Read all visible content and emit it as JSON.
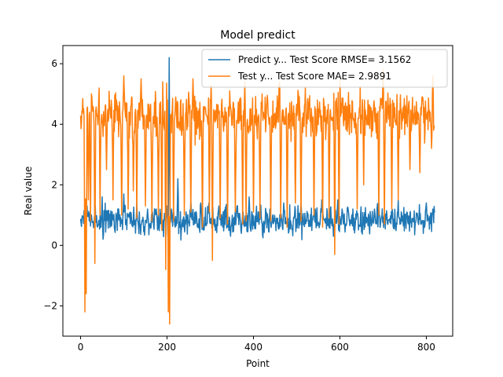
{
  "chart_data": {
    "type": "line",
    "title": "Model predict",
    "xlabel": "Point",
    "ylabel": "Real value",
    "xlim": [
      -41,
      861
    ],
    "ylim": [
      -3.0,
      6.6
    ],
    "xticks": [
      0,
      200,
      400,
      600,
      800
    ],
    "yticks": [
      -2,
      0,
      2,
      4,
      6
    ],
    "grid": false,
    "legend_position": "upper right",
    "colors": {
      "blue": "#1f77b4",
      "orange": "#ff7f0e"
    },
    "x_start": 0,
    "x_end": 819,
    "series": [
      {
        "name": "Predict y... Test Score RMSE= 3.1562",
        "color": "#1f77b4",
        "summary": {
          "baseline": 0.82,
          "spread": 0.22,
          "spikes": [
            [
              10,
              1.5
            ],
            [
              15,
              1.3
            ],
            [
              50,
              1.6
            ],
            [
              100,
              1.7
            ],
            [
              130,
              1.4
            ],
            [
              155,
              1.2
            ],
            [
              175,
              1.2
            ],
            [
              200,
              1.3
            ],
            [
              205,
              6.2
            ],
            [
              210,
              1.2
            ],
            [
              225,
              2.2
            ],
            [
              255,
              1.5
            ],
            [
              278,
              1.4
            ],
            [
              297,
              1.4
            ],
            [
              320,
              1.3
            ],
            [
              362,
              1.3
            ],
            [
              390,
              1.6
            ],
            [
              438,
              1.2
            ],
            [
              470,
              1.4
            ],
            [
              510,
              1.4
            ],
            [
              543,
              1.2
            ],
            [
              558,
              1.5
            ],
            [
              595,
              1.5
            ],
            [
              605,
              1.2
            ],
            [
              680,
              1.2
            ],
            [
              690,
              1.4
            ],
            [
              735,
              1.5
            ],
            [
              755,
              1.1
            ],
            [
              800,
              1.4
            ],
            [
              815,
              1.2
            ]
          ],
          "dips": [
            [
              52,
              0.2
            ],
            [
              202,
              0.3
            ],
            [
              347,
              0.3
            ],
            [
              585,
              0.3
            ]
          ]
        }
      },
      {
        "name": "Test y... Test Score MAE= 2.9891",
        "color": "#ff7f0e",
        "summary": {
          "baseline": 4.3,
          "spread": 0.35,
          "dips": [
            [
              10,
              -2.2
            ],
            [
              13,
              -1.6
            ],
            [
              18,
              1.5
            ],
            [
              23,
              0.8
            ],
            [
              33,
              -0.6
            ],
            [
              45,
              1.0
            ],
            [
              60,
              2.5
            ],
            [
              75,
              1.5
            ],
            [
              95,
              1.0
            ],
            [
              110,
              1.2
            ],
            [
              122,
              1.8
            ],
            [
              130,
              0.9
            ],
            [
              150,
              1.3
            ],
            [
              165,
              0.8
            ],
            [
              180,
              1.0
            ],
            [
              188,
              0.5
            ],
            [
              197,
              -0.8
            ],
            [
              203,
              -2.2
            ],
            [
              206,
              -2.6
            ],
            [
              215,
              0.8
            ],
            [
              240,
              1.0
            ],
            [
              255,
              1.1
            ],
            [
              282,
              0.6
            ],
            [
              298,
              1.1
            ],
            [
              305,
              -0.5
            ],
            [
              323,
              0.9
            ],
            [
              340,
              0.7
            ],
            [
              358,
              1.1
            ],
            [
              375,
              0.7
            ],
            [
              383,
              0.8
            ],
            [
              400,
              1.1
            ],
            [
              415,
              0.9
            ],
            [
              440,
              0.8
            ],
            [
              463,
              0.9
            ],
            [
              478,
              0.6
            ],
            [
              497,
              1.4
            ],
            [
              510,
              0.8
            ],
            [
              540,
              1.0
            ],
            [
              560,
              0.6
            ],
            [
              575,
              0.9
            ],
            [
              588,
              -0.3
            ],
            [
              598,
              0.7
            ],
            [
              640,
              1.2
            ],
            [
              655,
              2.0
            ],
            [
              690,
              1.0
            ],
            [
              703,
              0.7
            ],
            [
              720,
              1.2
            ],
            [
              735,
              1.5
            ],
            [
              762,
              2.5
            ],
            [
              785,
              2.4
            ],
            [
              812,
              3.2
            ]
          ],
          "peaks": [
            [
              10,
              5.4
            ],
            [
              25,
              5.0
            ],
            [
              43,
              5.2
            ],
            [
              100,
              5.6
            ],
            [
              118,
              4.9
            ],
            [
              140,
              5.5
            ],
            [
              190,
              5.4
            ],
            [
              198,
              5.6
            ],
            [
              220,
              4.9
            ],
            [
              260,
              5.5
            ],
            [
              302,
              5.3
            ],
            [
              345,
              5.1
            ],
            [
              380,
              5.4
            ],
            [
              420,
              5.0
            ],
            [
              460,
              5.4
            ],
            [
              520,
              5.2
            ],
            [
              560,
              5.0
            ],
            [
              600,
              5.5
            ],
            [
              655,
              5.0
            ],
            [
              700,
              5.8
            ],
            [
              735,
              5.1
            ],
            [
              790,
              4.9
            ],
            [
              815,
              5.6
            ]
          ]
        }
      }
    ]
  }
}
